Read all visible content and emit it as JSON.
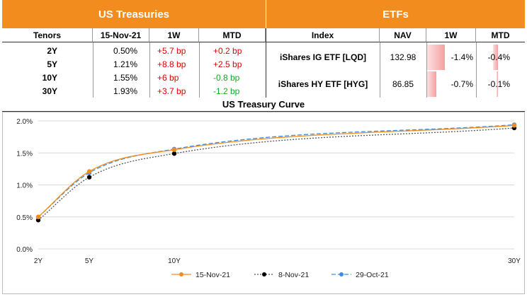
{
  "treasuries": {
    "title": "US Treasuries",
    "headers": [
      "Tenors",
      "15-Nov-21",
      "1W",
      "MTD"
    ],
    "rows": [
      {
        "tenor": "2Y",
        "yield": "0.50%",
        "w1": "+5.7 bp",
        "mtd": "+0.2 bp",
        "w1_color": "#e00000",
        "mtd_color": "#e00000"
      },
      {
        "tenor": "5Y",
        "yield": "1.21%",
        "w1": "+8.8 bp",
        "mtd": "+2.5 bp",
        "w1_color": "#e00000",
        "mtd_color": "#e00000"
      },
      {
        "tenor": "10Y",
        "yield": "1.55%",
        "w1": "+6 bp",
        "mtd": "-0.8 bp",
        "w1_color": "#e00000",
        "mtd_color": "#1aa329"
      },
      {
        "tenor": "30Y",
        "yield": "1.93%",
        "w1": "+3.7 bp",
        "mtd": "-1.2 bp",
        "w1_color": "#e00000",
        "mtd_color": "#1aa329"
      }
    ]
  },
  "etfs": {
    "title": "ETFs",
    "headers": [
      "Index",
      "NAV",
      "1W",
      "MTD"
    ],
    "rows": [
      {
        "index": "iShares IG ETF [LQD]",
        "nav": "132.98",
        "w1": "-1.4%",
        "mtd": "-0.4%",
        "w1_value": -1.4,
        "mtd_value": -0.4
      },
      {
        "index": "iShares HY ETF [HYG]",
        "nav": "86.85",
        "w1": "-0.7%",
        "mtd": "-0.1%",
        "w1_value": -0.7,
        "mtd_value": -0.1
      }
    ],
    "bar_color": "#f4a0a0"
  },
  "chart_data": {
    "type": "line",
    "title": "US Treasury Curve",
    "x": [
      2,
      5,
      10,
      30
    ],
    "x_tick_labels": [
      "2Y",
      "5Y",
      "10Y",
      "30Y"
    ],
    "xlim": [
      2,
      30
    ],
    "ylim": [
      0,
      2.0
    ],
    "y_ticks": [
      0,
      0.5,
      1.0,
      1.5,
      2.0
    ],
    "y_tick_labels": [
      "0.0%",
      "0.5%",
      "1.0%",
      "1.5%",
      "2.0%"
    ],
    "grid": true,
    "legend_position": "bottom",
    "series": [
      {
        "name": "15-Nov-21",
        "values": [
          0.5,
          1.21,
          1.55,
          1.93
        ],
        "color": "#f28c1e",
        "marker_color": "#f28c1e",
        "dash": "none"
      },
      {
        "name": "8-Nov-21",
        "values": [
          0.45,
          1.12,
          1.49,
          1.89
        ],
        "color": "#555555",
        "marker_color": "#000000",
        "dash": "2,2"
      },
      {
        "name": "29-Oct-21",
        "values": [
          0.5,
          1.19,
          1.56,
          1.94
        ],
        "color": "#3a8ee6",
        "marker_color": "#3a8ee6",
        "dash": "6,3"
      }
    ]
  }
}
